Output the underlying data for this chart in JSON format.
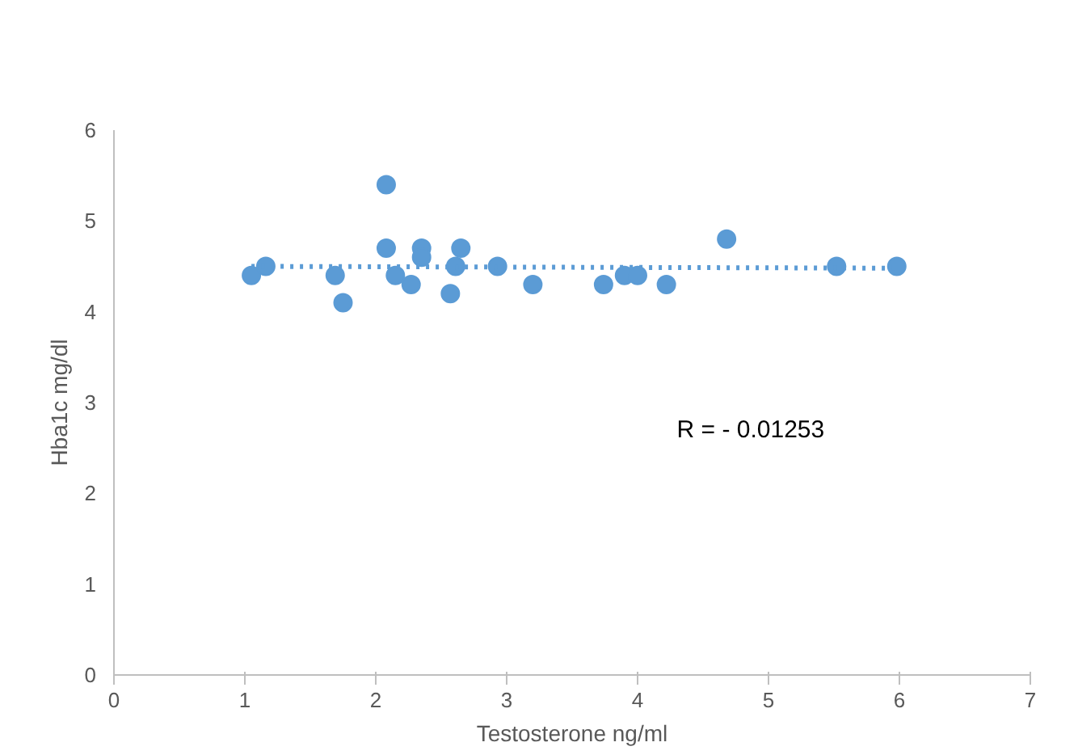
{
  "chart_data": {
    "type": "scatter",
    "xlabel": "Testosterone ng/ml",
    "ylabel": "Hba1c mg/dl",
    "xlim": [
      0,
      7
    ],
    "ylim": [
      0,
      6
    ],
    "xticks": [
      0,
      1,
      2,
      3,
      4,
      5,
      6,
      7
    ],
    "yticks": [
      0,
      1,
      2,
      3,
      4,
      5,
      6
    ],
    "grid": false,
    "annotations": [
      "R = - 0.01253"
    ],
    "series": [
      {
        "color": "#5b9bd5",
        "marker": "circle",
        "x": [
          1.05,
          1.16,
          1.69,
          1.75,
          2.08,
          2.08,
          2.15,
          2.27,
          2.35,
          2.35,
          2.57,
          2.61,
          2.65,
          2.93,
          3.2,
          3.74,
          3.9,
          4.0,
          4.22,
          4.68,
          5.52,
          5.98
        ],
        "values": [
          4.4,
          4.5,
          4.4,
          4.1,
          5.4,
          4.7,
          4.4,
          4.3,
          4.7,
          4.6,
          4.2,
          4.5,
          4.7,
          4.5,
          4.3,
          4.3,
          4.4,
          4.4,
          4.3,
          4.8,
          4.5,
          4.5
        ]
      },
      {
        "type": "line",
        "color": "#5b9bd5",
        "line_style": "dotted",
        "x": [
          1.05,
          5.98
        ],
        "values": [
          4.5,
          4.48
        ]
      }
    ]
  }
}
